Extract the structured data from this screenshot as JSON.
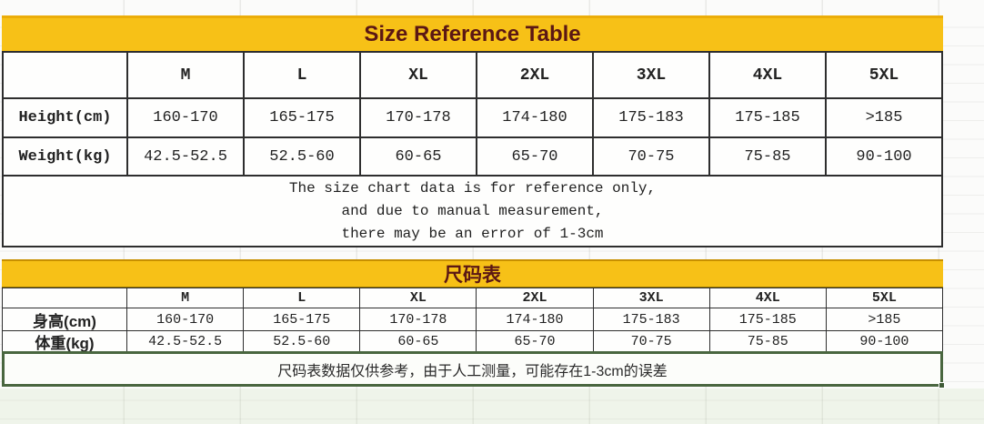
{
  "colors": {
    "banner_yellow": "#F7C117",
    "title_maroon": "#5B1714",
    "table_border": "#2E2E2E",
    "selection_green": "#49663F"
  },
  "en": {
    "title": "Size Reference Table",
    "sizes": [
      "M",
      "L",
      "XL",
      "2XL",
      "3XL",
      "4XL",
      "5XL"
    ],
    "rows": [
      {
        "label": "Height(cm)",
        "values": [
          "160-170",
          "165-175",
          "170-178",
          "174-180",
          "175-183",
          "175-185",
          ">185"
        ]
      },
      {
        "label": "Weight(kg)",
        "values": [
          "42.5-52.5",
          "52.5-60",
          "60-65",
          "65-70",
          "70-75",
          "75-85",
          "90-100"
        ]
      }
    ],
    "note_lines": [
      "The size chart data is for reference only,",
      "and due to manual measurement,",
      "there may be an error of 1-3cm"
    ]
  },
  "cn": {
    "title": "尺码表",
    "sizes": [
      "M",
      "L",
      "XL",
      "2XL",
      "3XL",
      "4XL",
      "5XL"
    ],
    "rows": [
      {
        "label": "身高(cm)",
        "values": [
          "160-170",
          "165-175",
          "170-178",
          "174-180",
          "175-183",
          "175-185",
          ">185"
        ]
      },
      {
        "label": "体重(kg)",
        "values": [
          "42.5-52.5",
          "52.5-60",
          "60-65",
          "65-70",
          "70-75",
          "75-85",
          "90-100"
        ]
      }
    ],
    "note": "尺码表数据仅供参考，由于人工测量，可能存在1-3cm的误差"
  }
}
